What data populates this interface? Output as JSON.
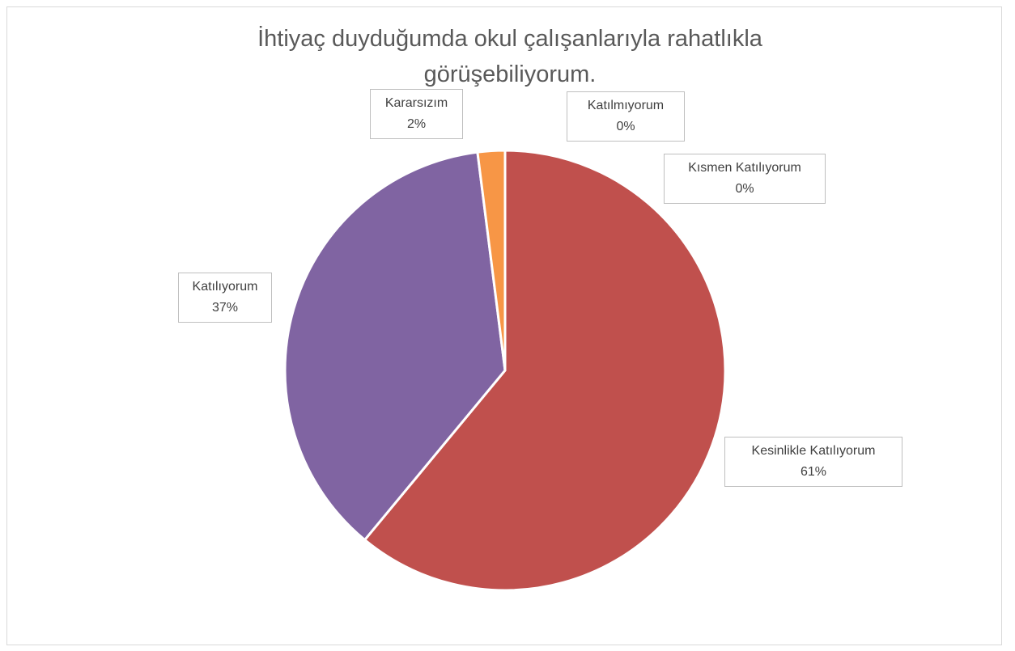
{
  "chart_data": {
    "type": "pie",
    "title": "İhtiyaç duyduğumda okul çalışanlarıyla rahatlıkla görüşebiliyorum.",
    "categories": [
      "Katılmıyorum",
      "Kısmen Katılıyorum",
      "Kesinlikle Katılıyorum",
      "Katılıyorum",
      "Kararsızım"
    ],
    "values": [
      0,
      0,
      61,
      37,
      2
    ],
    "value_labels": [
      "0%",
      "0%",
      "61%",
      "37%",
      "2%"
    ],
    "colors": [
      "#4f81bd",
      "#9bbb59",
      "#c0504d",
      "#8064a2",
      "#f79646"
    ]
  }
}
